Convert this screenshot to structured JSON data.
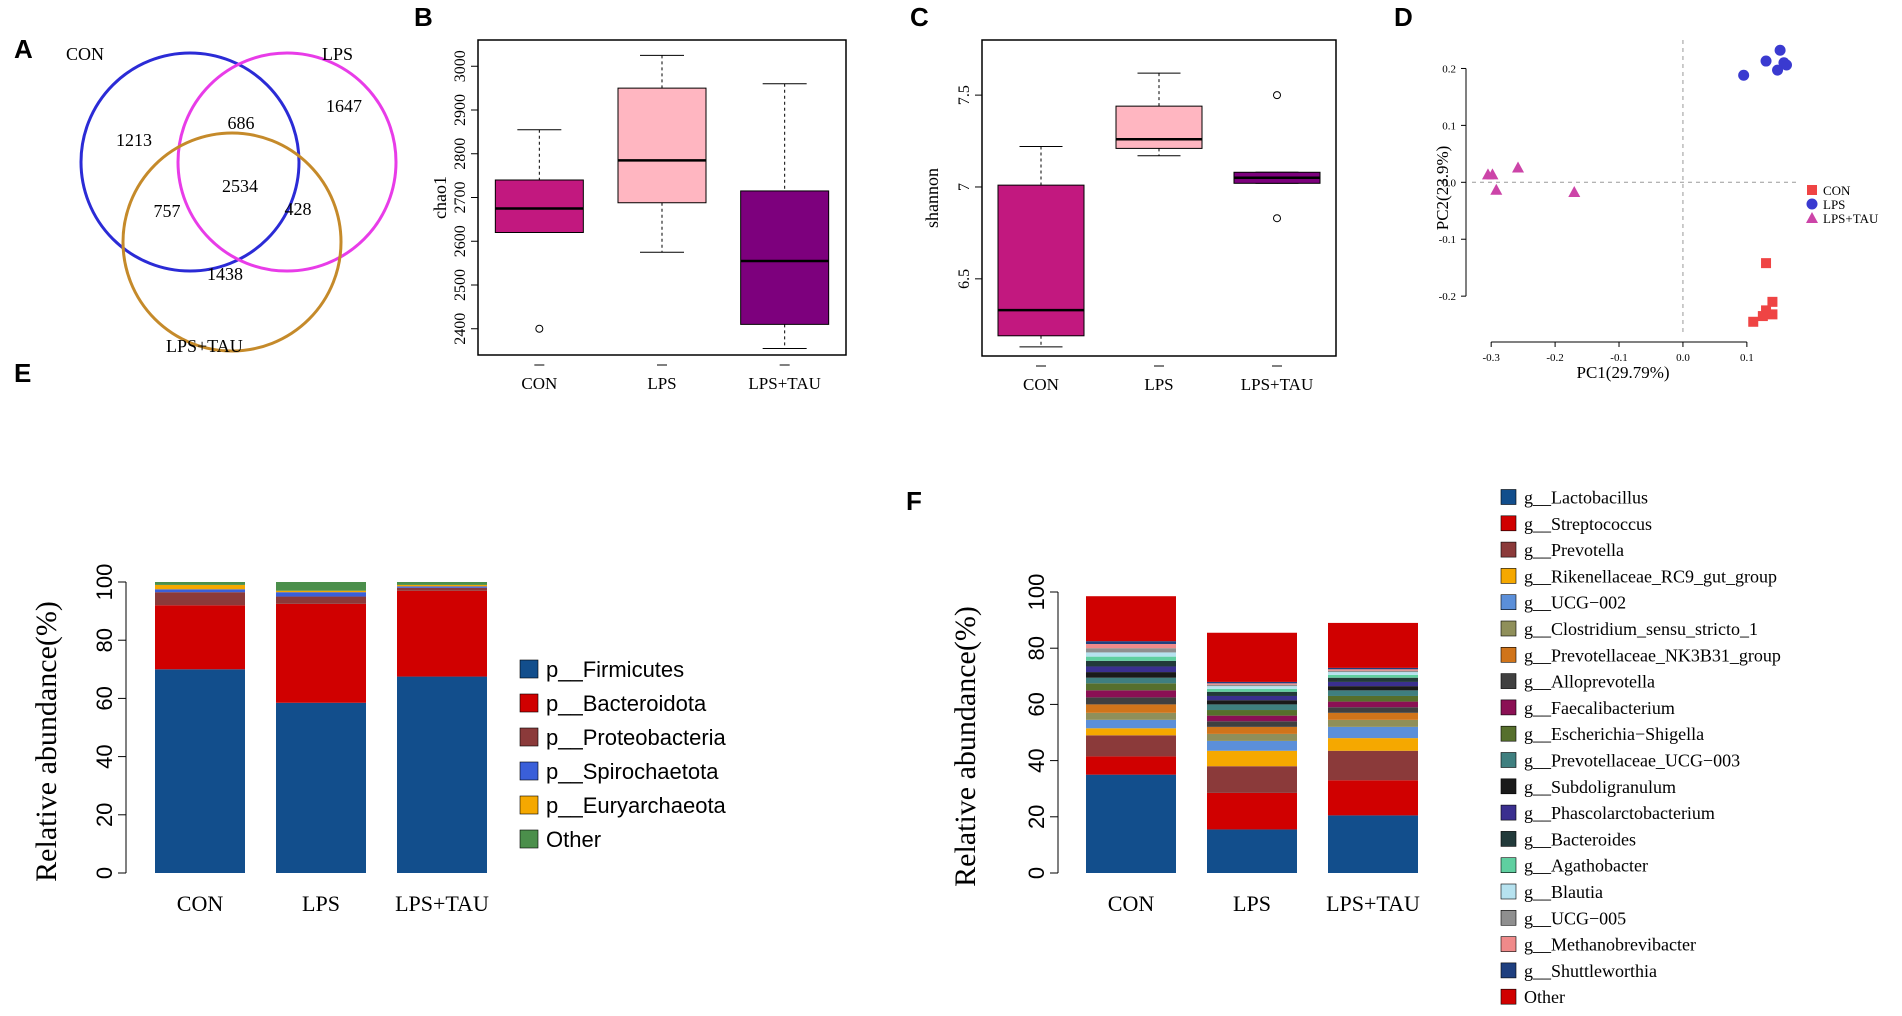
{
  "panels": {
    "A": "A",
    "B": "B",
    "C": "C",
    "D": "D",
    "E": "E",
    "F": "F"
  },
  "venn": {
    "sets": [
      {
        "name": "CON",
        "color": "#2b2bd6"
      },
      {
        "name": "LPS",
        "color": "#e83ce8"
      },
      {
        "name": "LPS+TAU",
        "color": "#c58a2a"
      }
    ],
    "counts": {
      "con_only": "1213",
      "lps_only": "1647",
      "tau_only": "1438",
      "con_lps": "686",
      "con_tau": "757",
      "lps_tau": "428",
      "all": "2534"
    }
  },
  "chart_data": [
    {
      "id": "B",
      "type": "boxplot",
      "title": "",
      "xlabel": "",
      "ylabel": "chao1",
      "ylim": [
        2340,
        3060
      ],
      "yticks": [
        2400,
        2500,
        2600,
        2700,
        2800,
        2900,
        3000
      ],
      "categories": [
        "CON",
        "LPS",
        "LPS+TAU"
      ],
      "boxes": [
        {
          "q1": 2620,
          "median": 2675,
          "q3": 2740,
          "whisker_low": 2620,
          "whisker_high": 2855,
          "outliers": [
            2400
          ],
          "color": "#c2187f"
        },
        {
          "q1": 2688,
          "median": 2785,
          "q3": 2950,
          "whisker_low": 2575,
          "whisker_high": 3025,
          "outliers": [],
          "color": "#ffb6c1"
        },
        {
          "q1": 2410,
          "median": 2555,
          "q3": 2715,
          "whisker_low": 2355,
          "whisker_high": 2960,
          "outliers": [],
          "color": "#7d007d"
        }
      ]
    },
    {
      "id": "C",
      "type": "boxplot",
      "title": "",
      "xlabel": "",
      "ylabel": "shannon",
      "ylim": [
        6.08,
        7.8
      ],
      "yticks": [
        6.5,
        7.0,
        7.5
      ],
      "categories": [
        "CON",
        "LPS",
        "LPS+TAU"
      ],
      "boxes": [
        {
          "q1": 6.19,
          "median": 6.33,
          "q3": 7.01,
          "whisker_low": 6.13,
          "whisker_high": 7.22,
          "outliers": [],
          "color": "#c2187f"
        },
        {
          "q1": 7.21,
          "median": 7.26,
          "q3": 7.44,
          "whisker_low": 7.17,
          "whisker_high": 7.62,
          "outliers": [],
          "color": "#ffb6c1"
        },
        {
          "q1": 7.02,
          "median": 7.05,
          "q3": 7.08,
          "whisker_low": 7.02,
          "whisker_high": 7.08,
          "outliers": [
            7.5,
            6.83
          ],
          "color": "#7d007d"
        }
      ]
    },
    {
      "id": "D",
      "type": "scatter",
      "title": "",
      "xlabel": "PC1(29.79%)",
      "ylabel": "PC2(23.9%)",
      "xlim": [
        -0.33,
        0.18
      ],
      "ylim": [
        -0.27,
        0.25
      ],
      "xticks": [
        -0.3,
        -0.2,
        -0.1,
        0.0,
        0.1
      ],
      "yticks": [
        -0.2,
        -0.1,
        0.0,
        0.1,
        0.2
      ],
      "legend_position": "right",
      "series": [
        {
          "name": "CON",
          "marker": "square",
          "color": "#ef4444",
          "points": [
            [
              0.11,
              -0.245
            ],
            [
              0.125,
              -0.235
            ],
            [
              0.13,
              -0.225
            ],
            [
              0.14,
              -0.21
            ],
            [
              0.14,
              -0.232
            ],
            [
              0.13,
              -0.142
            ]
          ]
        },
        {
          "name": "LPS",
          "marker": "circle",
          "color": "#3a3ad0",
          "points": [
            [
              0.095,
              0.188
            ],
            [
              0.13,
              0.213
            ],
            [
              0.148,
              0.197
            ],
            [
              0.152,
              0.232
            ],
            [
              0.158,
              0.21
            ],
            [
              0.162,
              0.206
            ]
          ]
        },
        {
          "name": "LPS+TAU",
          "marker": "triangle",
          "color": "#cc44a8",
          "points": [
            [
              -0.305,
              0.014
            ],
            [
              -0.298,
              0.014
            ],
            [
              -0.292,
              -0.013
            ],
            [
              -0.258,
              0.026
            ],
            [
              -0.17,
              -0.017
            ]
          ]
        }
      ]
    },
    {
      "id": "E",
      "type": "stacked_bar",
      "title": "",
      "xlabel": "",
      "ylabel": "Relative abundance(%)",
      "ylim": [
        0,
        100
      ],
      "yticks": [
        0,
        20,
        40,
        60,
        80,
        100
      ],
      "categories": [
        "CON",
        "LPS",
        "LPS+TAU"
      ],
      "series": [
        {
          "name": "p__Firmicutes",
          "color": "#124e8c",
          "values": [
            70,
            58.5,
            67.5
          ]
        },
        {
          "name": "p__Bacteroidota",
          "color": "#d00000",
          "values": [
            22,
            34,
            29.5
          ]
        },
        {
          "name": "p__Proteobacteria",
          "color": "#8b3a3a",
          "values": [
            4.5,
            2.5,
            1.0
          ]
        },
        {
          "name": "p__Spirochaetota",
          "color": "#3a5fd9",
          "values": [
            1.0,
            1.5,
            0.5
          ]
        },
        {
          "name": "p__Euryarchaeota",
          "color": "#f5a800",
          "values": [
            1.5,
            0.5,
            0.5
          ]
        },
        {
          "name": "Other",
          "color": "#4b8f4b",
          "values": [
            1.0,
            3.0,
            1.0
          ]
        }
      ]
    },
    {
      "id": "F",
      "type": "stacked_bar",
      "title": "",
      "xlabel": "",
      "ylabel": "Relative abundance(%)",
      "ylim": [
        0,
        100
      ],
      "yticks": [
        0,
        20,
        40,
        60,
        80,
        100
      ],
      "categories": [
        "CON",
        "LPS",
        "LPS+TAU"
      ],
      "series": [
        {
          "name": "g__Lactobacillus",
          "color": "#124e8c",
          "values": [
            35,
            15.5,
            20.5
          ]
        },
        {
          "name": "g__Streptococcus",
          "color": "#d00000",
          "values": [
            6.5,
            13,
            12.5
          ]
        },
        {
          "name": "g__Prevotella",
          "color": "#8b3a3a",
          "values": [
            7.5,
            9.5,
            10.5
          ]
        },
        {
          "name": "g__Rikenellaceae_RC9_gut_group",
          "color": "#f5a800",
          "values": [
            2.5,
            5.5,
            4.5
          ]
        },
        {
          "name": "g__UCG−002",
          "color": "#5b8fd9",
          "values": [
            3.0,
            3.5,
            4.0
          ]
        },
        {
          "name": "g__Clostridium_sensu_stricto_1",
          "color": "#8f8f5a",
          "values": [
            2.5,
            2.5,
            2.5
          ]
        },
        {
          "name": "g__Prevotellaceae_NK3B31_group",
          "color": "#d0741a",
          "values": [
            3.0,
            2.5,
            2.5
          ]
        },
        {
          "name": "g__Alloprevotella",
          "color": "#404040",
          "values": [
            2.5,
            2.0,
            2.0
          ]
        },
        {
          "name": "g__Faecalibacterium",
          "color": "#8b1054",
          "values": [
            2.5,
            2.0,
            2.0
          ]
        },
        {
          "name": "g__Escherichia−Shigella",
          "color": "#566f2c",
          "values": [
            2.5,
            2.0,
            2.0
          ]
        },
        {
          "name": "g__Prevotellaceae_UCG−003",
          "color": "#3f7f7f",
          "values": [
            2.0,
            2.0,
            2.0
          ]
        },
        {
          "name": "g__Subdoligranulum",
          "color": "#1a1a1a",
          "values": [
            2.0,
            1.5,
            1.5
          ]
        },
        {
          "name": "g__Phascolarctobacterium",
          "color": "#3a2f8f",
          "values": [
            2.0,
            1.5,
            1.5
          ]
        },
        {
          "name": "g__Bacteroides",
          "color": "#223a3a",
          "values": [
            2.0,
            1.5,
            1.5
          ]
        },
        {
          "name": "g__Agathobacter",
          "color": "#5fcfa0",
          "values": [
            1.5,
            1.0,
            1.0
          ]
        },
        {
          "name": "g__Blautia",
          "color": "#b6e2ef",
          "values": [
            1.5,
            1.0,
            1.0
          ]
        },
        {
          "name": "g__UCG−005",
          "color": "#8f8f8f",
          "values": [
            1.5,
            0.5,
            0.5
          ]
        },
        {
          "name": "g__Methanobrevibacter",
          "color": "#f08a8a",
          "values": [
            1.5,
            0.5,
            0.5
          ]
        },
        {
          "name": "g__Shuttleworthia",
          "color": "#1e3f7f",
          "values": [
            1.0,
            0.5,
            0.5
          ]
        },
        {
          "name": "Other",
          "color": "#d00000",
          "values": [
            16.0,
            17.5,
            16.0
          ]
        }
      ]
    }
  ]
}
